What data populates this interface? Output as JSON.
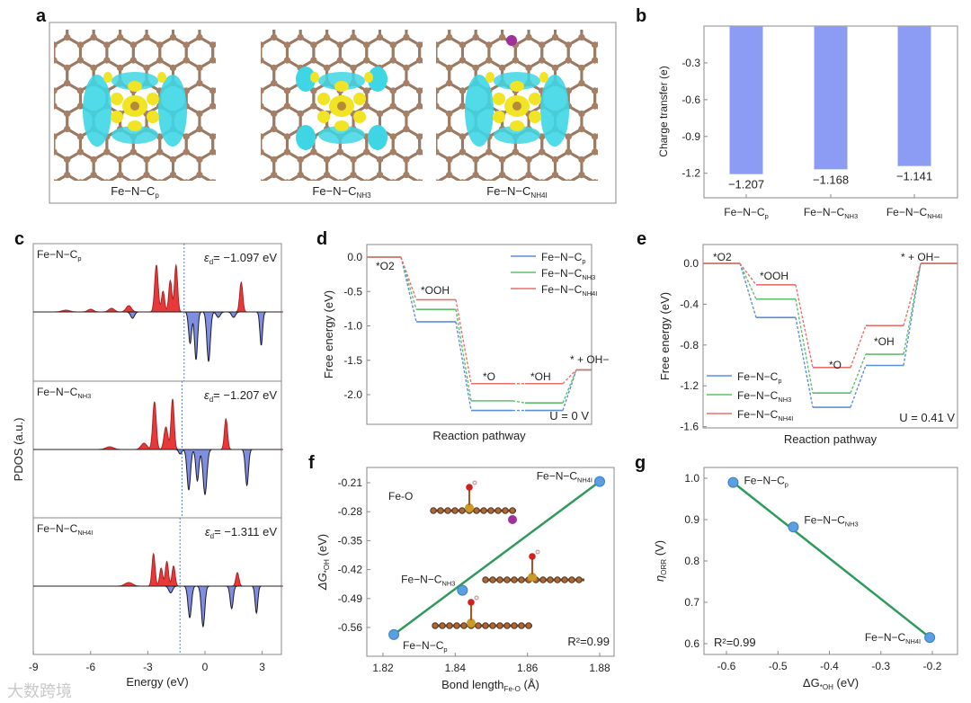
{
  "watermark": "大数跨境",
  "panel_labels": [
    "a",
    "b",
    "c",
    "d",
    "e",
    "f",
    "g"
  ],
  "panel_a": {
    "structures": [
      {
        "main": "Fe−N−C",
        "sub": "p"
      },
      {
        "main": "Fe−N−C",
        "sub": "NH3"
      },
      {
        "main": "Fe−N−C",
        "sub": "NH4I"
      }
    ]
  },
  "colors": {
    "bar": "#8c9cf5",
    "blue": "#5b8fd6",
    "green": "#5fbf6a",
    "red": "#e8706a",
    "fit": "#2e9a5c",
    "up": "#e8393a",
    "down": "#7f8ee0",
    "point": "#5aa0e0"
  },
  "chart_data": [
    {
      "panel": "b",
      "type": "bar",
      "categories": [
        {
          "main": "Fe−N−C",
          "sub": "p"
        },
        {
          "main": "Fe−N−C",
          "sub": "NH3"
        },
        {
          "main": "Fe−N−C",
          "sub": "NH4I"
        }
      ],
      "values": [
        -1.207,
        -1.168,
        -1.141
      ],
      "value_labels": [
        "−1.207",
        "−1.168",
        "−1.141"
      ],
      "ylabel": "Charge transfer (e)",
      "yticks": [
        "-0.3",
        "-0.6",
        "-0.9",
        "-1.2"
      ],
      "ylim": [
        -1.4,
        0
      ]
    },
    {
      "panel": "c",
      "type": "area",
      "xlabel": "Energy (eV)",
      "ylabel": "PDOS (a.u.)",
      "xticks": [
        "-9",
        "-6",
        "-3",
        "0",
        "3"
      ],
      "xlim": [
        -9,
        4.1
      ],
      "subplots": [
        {
          "name": {
            "main": "Fe−N−C",
            "sub": "p"
          },
          "ed_label": "= −1.097 eV",
          "ed_symbol": "ε",
          "ed_sub": "d",
          "ed": -1.097,
          "spin_up": [
            [
              -2.55,
              1.04,
              0.09
            ],
            [
              -2.2,
              0.46,
              0.08
            ],
            [
              -1.82,
              0.7,
              0.08
            ],
            [
              -1.52,
              1.04,
              0.08
            ],
            [
              1.9,
              0.66,
              0.08
            ],
            [
              -4.0,
              0.14,
              0.14
            ],
            [
              -4.9,
              0.08,
              0.15
            ],
            [
              -6.0,
              0.06,
              0.15
            ],
            [
              -7.3,
              0.04,
              0.2
            ]
          ],
          "spin_down": [
            [
              -0.78,
              0.7,
              0.08
            ],
            [
              -0.47,
              1.06,
              0.08
            ],
            [
              0.19,
              1.1,
              0.09
            ],
            [
              2.95,
              0.74,
              0.07
            ],
            [
              0.7,
              0.12,
              0.1
            ],
            [
              1.5,
              0.12,
              0.1
            ],
            [
              -3.8,
              0.14,
              0.1
            ]
          ]
        },
        {
          "name": {
            "main": "Fe−N−C",
            "sub": "NH3"
          },
          "ed_label": "= −1.207 eV",
          "ed_symbol": "ε",
          "ed_sub": "d",
          "ed": -1.207,
          "spin_up": [
            [
              -2.65,
              1.06,
              0.09
            ],
            [
              -2.05,
              0.5,
              0.1
            ],
            [
              -1.7,
              1.12,
              0.08
            ],
            [
              1.1,
              0.68,
              0.08
            ],
            [
              -3.2,
              0.14,
              0.15
            ],
            [
              -5.0,
              0.06,
              0.2
            ]
          ],
          "spin_down": [
            [
              -0.85,
              0.9,
              0.09
            ],
            [
              0.0,
              1.0,
              0.1
            ],
            [
              -0.4,
              0.7,
              0.08
            ],
            [
              2.2,
              0.8,
              0.08
            ],
            [
              -1.3,
              0.1,
              0.08
            ]
          ]
        },
        {
          "name": {
            "main": "Fe−N−C",
            "sub": "NH4I"
          },
          "ed_label": "= −1.311 eV",
          "ed_symbol": "ε",
          "ed_sub": "d",
          "ed": -1.311,
          "spin_up": [
            [
              -2.7,
              0.72,
              0.08
            ],
            [
              -2.3,
              0.4,
              0.08
            ],
            [
              -2.0,
              0.55,
              0.08
            ],
            [
              -1.65,
              0.45,
              0.08
            ],
            [
              1.7,
              0.3,
              0.08
            ],
            [
              -4.0,
              0.08,
              0.2
            ]
          ],
          "spin_down": [
            [
              -0.8,
              0.7,
              0.09
            ],
            [
              -0.1,
              0.9,
              0.09
            ],
            [
              1.4,
              0.5,
              0.08
            ],
            [
              2.7,
              0.6,
              0.07
            ],
            [
              -1.8,
              0.15,
              0.1
            ]
          ]
        }
      ]
    },
    {
      "panel": "d",
      "type": "line",
      "steps": [
        "*O2",
        "*OOH",
        "*O",
        "*OH",
        "* + OH−"
      ],
      "series": [
        {
          "name": {
            "main": "Fe−N−C",
            "sub": "p"
          },
          "values": [
            0,
            -0.94,
            -2.23,
            -2.23,
            -1.64
          ]
        },
        {
          "name": {
            "main": "Fe−N−C",
            "sub": "NH3"
          },
          "values": [
            0,
            -0.76,
            -2.09,
            -2.12,
            -1.64
          ]
        },
        {
          "name": {
            "main": "Fe−N−C",
            "sub": "NH4I"
          },
          "values": [
            0,
            -0.62,
            -1.84,
            -1.84,
            -1.64
          ]
        }
      ],
      "ylabel": "Free energy (eV)",
      "xlabel": "Reaction pathway",
      "yticks": [
        "0.0",
        "-0.5",
        "-1.0",
        "-1.5",
        "-2.0"
      ],
      "annotation": "U = 0 V",
      "legend": "top-right"
    },
    {
      "panel": "e",
      "type": "line",
      "steps": [
        "*O2",
        "*OOH",
        "*O",
        "*OH",
        "* + OH−"
      ],
      "series": [
        {
          "name": {
            "main": "Fe−N−C",
            "sub": "p"
          },
          "values": [
            0,
            -0.53,
            -1.41,
            -1.0,
            0
          ]
        },
        {
          "name": {
            "main": "Fe−N−C",
            "sub": "NH3"
          },
          "values": [
            0,
            -0.35,
            -1.27,
            -0.89,
            0
          ]
        },
        {
          "name": {
            "main": "Fe−N−C",
            "sub": "NH4I"
          },
          "values": [
            0,
            -0.21,
            -1.02,
            -0.61,
            0
          ]
        }
      ],
      "ylabel": "Free energy (eV)",
      "xlabel": "Reaction pathway",
      "yticks": [
        "0.0",
        "-0.4",
        "-0.8",
        "-1.2",
        "-1.6"
      ],
      "annotation": "U = 0.41 V",
      "legend": "bottom-left"
    },
    {
      "panel": "f",
      "type": "scatter",
      "points": [
        {
          "label": {
            "main": "Fe−N−C",
            "sub": "p"
          },
          "x": 1.823,
          "y": -0.577
        },
        {
          "label": {
            "main": "Fe−N−C",
            "sub": "NH3"
          },
          "x": 1.842,
          "y": -0.47
        },
        {
          "label": {
            "main": "Fe−N−C",
            "sub": "NH4I"
          },
          "x": 1.88,
          "y": -0.207
        }
      ],
      "xlabel": {
        "main": "Bond length",
        "sub": "Fe-O",
        "tail": " (Å)"
      },
      "ylabel": {
        "main": "ΔG",
        "sub": "*OH",
        "tail": " (eV)"
      },
      "xticks": [
        "1.82",
        "1.84",
        "1.86",
        "1.88"
      ],
      "yticks": [
        "-0.21",
        "-0.28",
        "-0.35",
        "-0.42",
        "-0.49",
        "-0.56"
      ],
      "inset_label": "Fe-O",
      "r2": "R²=0.99"
    },
    {
      "panel": "g",
      "type": "scatter",
      "points": [
        {
          "label": {
            "main": "Fe−N−C",
            "sub": "p"
          },
          "x": -0.587,
          "y": 0.99
        },
        {
          "label": {
            "main": "Fe−N−C",
            "sub": "NH3"
          },
          "x": -0.47,
          "y": 0.882
        },
        {
          "label": {
            "main": "Fe−N−C",
            "sub": "NH4I"
          },
          "x": -0.205,
          "y": 0.615
        }
      ],
      "xlabel": {
        "main": "ΔG",
        "sub": "*OH",
        "tail": " (eV)"
      },
      "ylabel": {
        "main": "η",
        "sub": "ORR",
        "tail": " (V)"
      },
      "xticks": [
        "-0.6",
        "-0.5",
        "-0.4",
        "-0.3",
        "-0.2"
      ],
      "yticks": [
        "1.0",
        "0.9",
        "0.8",
        "0.7",
        "0.6"
      ],
      "r2": "R²=0.99"
    }
  ]
}
